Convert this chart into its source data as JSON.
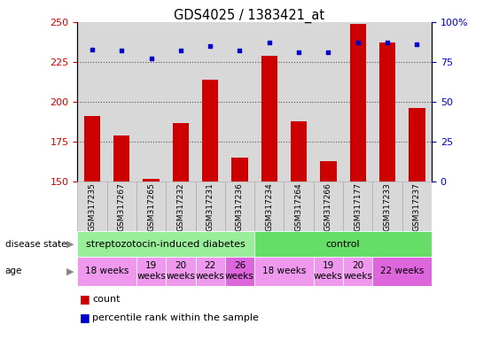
{
  "title": "GDS4025 / 1383421_at",
  "samples": [
    "GSM317235",
    "GSM317267",
    "GSM317265",
    "GSM317232",
    "GSM317231",
    "GSM317236",
    "GSM317234",
    "GSM317264",
    "GSM317266",
    "GSM317177",
    "GSM317233",
    "GSM317237"
  ],
  "counts": [
    191,
    179,
    152,
    187,
    214,
    165,
    229,
    188,
    163,
    249,
    237,
    196
  ],
  "percentiles": [
    83,
    82,
    77,
    82,
    85,
    82,
    87,
    81,
    81,
    87,
    87,
    86
  ],
  "ylim_left": [
    150,
    250
  ],
  "ylim_right": [
    0,
    100
  ],
  "yticks_left": [
    150,
    175,
    200,
    225,
    250
  ],
  "yticks_right": [
    0,
    25,
    50,
    75,
    100
  ],
  "bar_color": "#cc0000",
  "dot_color": "#0000cc",
  "disease_state_groups": [
    {
      "label": "streptozotocin-induced diabetes",
      "start": 0,
      "end": 6,
      "color": "#99ee99"
    },
    {
      "label": "control",
      "start": 6,
      "end": 12,
      "color": "#66dd66"
    }
  ],
  "age_groups": [
    {
      "label": "18 weeks",
      "start": 0,
      "end": 2,
      "color": "#ee99ee"
    },
    {
      "label": "19\nweeks",
      "start": 2,
      "end": 3,
      "color": "#ee99ee"
    },
    {
      "label": "20\nweeks",
      "start": 3,
      "end": 4,
      "color": "#ee99ee"
    },
    {
      "label": "22\nweeks",
      "start": 4,
      "end": 5,
      "color": "#ee99ee"
    },
    {
      "label": "26\nweeks",
      "start": 5,
      "end": 6,
      "color": "#dd66dd"
    },
    {
      "label": "18 weeks",
      "start": 6,
      "end": 8,
      "color": "#ee99ee"
    },
    {
      "label": "19\nweeks",
      "start": 8,
      "end": 9,
      "color": "#ee99ee"
    },
    {
      "label": "20\nweeks",
      "start": 9,
      "end": 10,
      "color": "#ee99ee"
    },
    {
      "label": "22 weeks",
      "start": 10,
      "end": 12,
      "color": "#dd66dd"
    }
  ],
  "tick_label_fontsize": 6.5,
  "bar_width": 0.55,
  "background_color": "#ffffff",
  "dotted_line_color": "#555555"
}
